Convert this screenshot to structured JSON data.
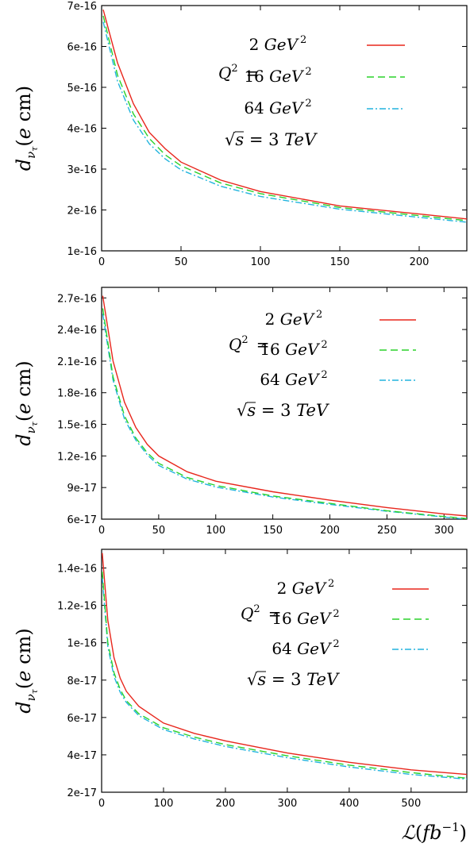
{
  "chart_data": [
    {
      "type": "line",
      "panel": "top",
      "xlim": [
        0,
        230
      ],
      "ylim": [
        1e-16,
        7e-16
      ],
      "x_ticks": [
        "0",
        "50",
        "100",
        "150",
        "200"
      ],
      "y_ticks": [
        "1e-16",
        "2e-16",
        "3e-16",
        "4e-16",
        "5e-16",
        "6e-16",
        "7e-16"
      ],
      "ylabel": "d_{ν_τ}(e cm)",
      "legend_prefix": "Q² =",
      "annotation": "√s = 3 TeV",
      "series": [
        {
          "name": "2 GeV²",
          "color": "#e8261c",
          "dash": "solid",
          "x": [
            1,
            10,
            20,
            30,
            40,
            50,
            75,
            100,
            150,
            200,
            230
          ],
          "y": [
            6.9e-16,
            5.6e-16,
            4.6e-16,
            3.9e-16,
            3.5e-16,
            3.17e-16,
            2.73e-16,
            2.45e-16,
            2.1e-16,
            1.9e-16,
            1.78e-16
          ]
        },
        {
          "name": "16 GeV²",
          "color": "#2ad22a",
          "dash": "dashed",
          "x": [
            1,
            10,
            20,
            30,
            40,
            50,
            75,
            100,
            150,
            200,
            230
          ],
          "y": [
            6.75e-16,
            5.3e-16,
            4.35e-16,
            3.75e-16,
            3.35e-16,
            3.08e-16,
            2.66e-16,
            2.4e-16,
            2.06e-16,
            1.86e-16,
            1.74e-16
          ]
        },
        {
          "name": "64 GeV²",
          "color": "#22b4de",
          "dash": "dashdot",
          "x": [
            1,
            10,
            20,
            30,
            40,
            50,
            75,
            100,
            150,
            200,
            230
          ],
          "y": [
            6.6e-16,
            5.15e-16,
            4.2e-16,
            3.62e-16,
            3.25e-16,
            2.98e-16,
            2.58e-16,
            2.33e-16,
            2.02e-16,
            1.82e-16,
            1.7e-16
          ]
        }
      ]
    },
    {
      "type": "line",
      "panel": "middle",
      "xlim": [
        0,
        320
      ],
      "ylim": [
        6e-17,
        2.8e-16
      ],
      "x_ticks": [
        "0",
        "50",
        "100",
        "150",
        "200",
        "250",
        "300"
      ],
      "y_ticks": [
        "6e-17",
        "9e-17",
        "1.2e-16",
        "1.5e-16",
        "1.8e-16",
        "2.1e-16",
        "2.4e-16",
        "2.7e-16"
      ],
      "ylabel": "d_{ν_τ}(e cm)",
      "legend_prefix": "Q² =",
      "annotation": "√s = 3 TeV",
      "series": [
        {
          "name": "2 GeV²",
          "color": "#e8261c",
          "dash": "solid",
          "x": [
            1,
            10,
            20,
            30,
            40,
            50,
            75,
            100,
            150,
            200,
            250,
            300,
            320
          ],
          "y": [
            2.72e-16,
            2.1e-16,
            1.71e-16,
            1.47e-16,
            1.31e-16,
            1.2e-16,
            1.05e-16,
            9.6e-17,
            8.6e-17,
            7.8e-17,
            7.1e-17,
            6.5e-17,
            6.3e-17
          ]
        },
        {
          "name": "16 GeV²",
          "color": "#2ad22a",
          "dash": "dashed",
          "x": [
            1,
            10,
            20,
            30,
            40,
            50,
            75,
            100,
            150,
            200,
            250,
            300,
            320
          ],
          "y": [
            2.6e-16,
            1.95e-16,
            1.58e-16,
            1.37e-16,
            1.23e-16,
            1.13e-16,
            9.95e-17,
            9.2e-17,
            8.2e-17,
            7.5e-17,
            6.8e-17,
            6.25e-17,
            6.05e-17
          ]
        },
        {
          "name": "64 GeV²",
          "color": "#22b4de",
          "dash": "dashdot",
          "x": [
            1,
            10,
            20,
            30,
            40,
            50,
            75,
            100,
            150,
            200,
            250,
            300,
            320
          ],
          "y": [
            2.55e-16,
            1.92e-16,
            1.55e-16,
            1.35e-16,
            1.21e-16,
            1.11e-16,
            9.8e-17,
            9.05e-17,
            8.1e-17,
            7.4e-17,
            6.75e-17,
            6.2e-17,
            6e-17
          ]
        }
      ]
    },
    {
      "type": "line",
      "panel": "bottom",
      "xlim": [
        0,
        590
      ],
      "ylim": [
        2e-17,
        1.5e-16
      ],
      "x_ticks": [
        "0",
        "100",
        "200",
        "300",
        "400",
        "500"
      ],
      "y_ticks": [
        "2e-17",
        "4e-17",
        "6e-17",
        "8e-17",
        "1e-16",
        "1.2e-16",
        "1.4e-16"
      ],
      "ylabel": "d_{ν_τ}(e cm)",
      "xlabel": "ℒ(fb⁻¹)",
      "legend_prefix": "Q² =",
      "annotation": "√s = 3 TeV",
      "series": [
        {
          "name": "2 GeV²",
          "color": "#e8261c",
          "dash": "solid",
          "x": [
            1,
            10,
            20,
            30,
            40,
            60,
            100,
            150,
            200,
            300,
            400,
            500,
            590
          ],
          "y": [
            1.48e-16,
            1.12e-16,
            9.2e-17,
            8.1e-17,
            7.4e-17,
            6.6e-17,
            5.7e-17,
            5.15e-17,
            4.75e-17,
            4.1e-17,
            3.6e-17,
            3.2e-17,
            2.95e-17
          ]
        },
        {
          "name": "16 GeV²",
          "color": "#2ad22a",
          "dash": "dashed",
          "x": [
            1,
            10,
            20,
            30,
            40,
            60,
            100,
            150,
            200,
            300,
            400,
            500,
            590
          ],
          "y": [
            1.38e-16,
            1e-16,
            8.4e-17,
            7.5e-17,
            6.9e-17,
            6.2e-17,
            5.45e-17,
            4.95e-17,
            4.55e-17,
            3.95e-17,
            3.45e-17,
            3.05e-17,
            2.75e-17
          ]
        },
        {
          "name": "64 GeV²",
          "color": "#22b4de",
          "dash": "dashdot",
          "x": [
            1,
            10,
            20,
            30,
            40,
            60,
            100,
            150,
            200,
            300,
            400,
            500,
            590
          ],
          "y": [
            1.35e-16,
            9.8e-17,
            8.2e-17,
            7.35e-17,
            6.8e-17,
            6.1e-17,
            5.35e-17,
            4.85e-17,
            4.45e-17,
            3.85e-17,
            3.35e-17,
            2.95e-17,
            2.7e-17
          ]
        }
      ]
    }
  ]
}
